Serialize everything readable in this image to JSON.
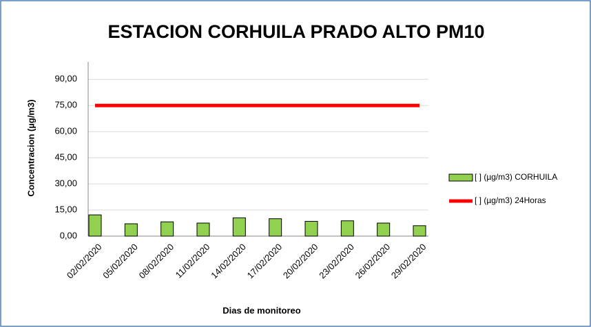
{
  "chart_data": {
    "type": "bar",
    "title": "ESTACION CORHUILA PRADO ALTO PM10",
    "x_label": "Dias de monitoreo",
    "y_label": "Concentracion (µg/m3)",
    "categories": [
      "02/02/2020",
      "05/02/2020",
      "08/02/2020",
      "11/02/2020",
      "14/02/2020",
      "17/02/2020",
      "20/02/2020",
      "23/02/2020",
      "26/02/2020",
      "29/02/2020"
    ],
    "series": [
      {
        "name": "[ ] (µg/m3) CORHUILA",
        "type": "bar",
        "color": "#92d050",
        "values": [
          12.2,
          7.1,
          8.2,
          7.5,
          10.5,
          10,
          8.5,
          8.8,
          7.5,
          6
        ]
      },
      {
        "name": "[ ] (µg/m3)  24Horas",
        "type": "line",
        "color": "#ff0000",
        "values": [
          75,
          75,
          75,
          75,
          75,
          75,
          75,
          75,
          75,
          75
        ]
      }
    ],
    "ylim": [
      0,
      100
    ],
    "yticks": [
      {
        "value": 0,
        "label": "0,00"
      },
      {
        "value": 15,
        "label": "15,00"
      },
      {
        "value": 30,
        "label": "30,00"
      },
      {
        "value": 45,
        "label": "45,00"
      },
      {
        "value": 60,
        "label": "60,00"
      },
      {
        "value": 75,
        "label": "75,00"
      },
      {
        "value": 90,
        "label": "90,00"
      }
    ],
    "grid": true,
    "legend": "right"
  }
}
